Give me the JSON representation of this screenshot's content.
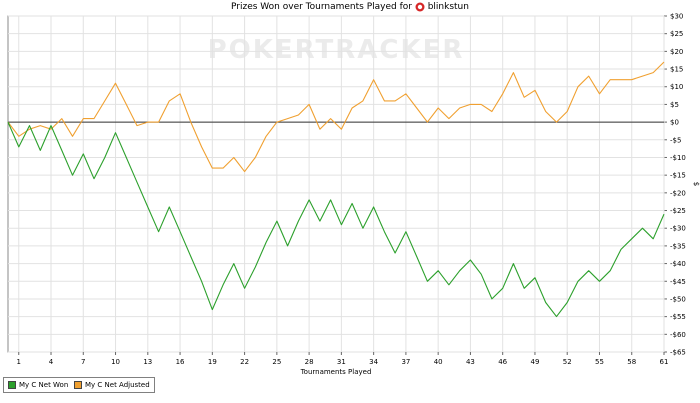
{
  "chart_data": {
    "type": "line",
    "title_prefix": "Prizes Won over Tournaments Played for",
    "player_name": "blinkstun",
    "watermark": "POKERTRACKER",
    "xlabel": "Tournaments Played",
    "ylabel": "$",
    "xlim": [
      0,
      61
    ],
    "ylim": [
      -65,
      30
    ],
    "x_ticks": [
      1,
      4,
      7,
      10,
      13,
      16,
      19,
      22,
      25,
      28,
      31,
      34,
      37,
      40,
      43,
      46,
      49,
      52,
      55,
      58,
      61
    ],
    "y_ticks": [
      30,
      25,
      20,
      15,
      10,
      5,
      0,
      -5,
      -10,
      -15,
      -20,
      -25,
      -30,
      -35,
      -40,
      -45,
      -50,
      -55,
      -60,
      -65
    ],
    "y_tick_labels": [
      "$30",
      "$25",
      "$20",
      "$15",
      "$10",
      "$5",
      "$0",
      "-$5",
      "-$10",
      "-$15",
      "-$20",
      "-$25",
      "-$30",
      "-$35",
      "-$40",
      "-$45",
      "-$50",
      "-$55",
      "-$60",
      "-$65"
    ],
    "grid": true,
    "zero_line": true,
    "legend_position": "bottom-left",
    "series": [
      {
        "name": "My C Net Won",
        "color": "#2ca02c",
        "x": [
          0,
          1,
          2,
          3,
          4,
          5,
          6,
          7,
          8,
          9,
          10,
          11,
          12,
          13,
          14,
          15,
          16,
          17,
          18,
          19,
          20,
          21,
          22,
          23,
          24,
          25,
          26,
          27,
          28,
          29,
          30,
          31,
          32,
          33,
          34,
          35,
          36,
          37,
          38,
          39,
          40,
          41,
          42,
          43,
          44,
          45,
          46,
          47,
          48,
          49,
          50,
          51,
          52,
          53,
          54,
          55,
          56,
          57,
          58,
          59,
          60,
          61
        ],
        "values": [
          0,
          -7,
          -1,
          -8,
          -1,
          -8,
          -15,
          -9,
          -16,
          -10,
          -3,
          -10,
          -17,
          -24,
          -31,
          -24,
          -31,
          -38,
          -45,
          -53,
          -46,
          -40,
          -47,
          -41,
          -34,
          -28,
          -35,
          -28,
          -22,
          -28,
          -22,
          -29,
          -23,
          -30,
          -24,
          -31,
          -37,
          -31,
          -38,
          -45,
          -42,
          -46,
          -42,
          -39,
          -43,
          -50,
          -47,
          -40,
          -47,
          -44,
          -51,
          -55,
          -51,
          -45,
          -42,
          -45,
          -42,
          -36,
          -33,
          -30,
          -33,
          -26
        ]
      },
      {
        "name": "My C Net Adjusted",
        "color": "#f0a030",
        "x": [
          0,
          1,
          2,
          3,
          4,
          5,
          6,
          7,
          8,
          9,
          10,
          11,
          12,
          13,
          14,
          15,
          16,
          17,
          18,
          19,
          20,
          21,
          22,
          23,
          24,
          25,
          26,
          27,
          28,
          29,
          30,
          31,
          32,
          33,
          34,
          35,
          36,
          37,
          38,
          39,
          40,
          41,
          42,
          43,
          44,
          45,
          46,
          47,
          48,
          49,
          50,
          51,
          52,
          53,
          54,
          55,
          56,
          57,
          58,
          59,
          60,
          61
        ],
        "values": [
          0,
          -4,
          -2,
          -1,
          -2,
          1,
          -4,
          1,
          1,
          6,
          11,
          5,
          -1,
          0,
          0,
          6,
          8,
          0,
          -7,
          -13,
          -13,
          -10,
          -14,
          -10,
          -4,
          0,
          1,
          2,
          5,
          -2,
          1,
          -2,
          4,
          6,
          12,
          6,
          6,
          8,
          4,
          0,
          4,
          1,
          4,
          5,
          5,
          3,
          8,
          14,
          7,
          9,
          3,
          0,
          3,
          10,
          13,
          8,
          12,
          12,
          12,
          13,
          14,
          17
        ]
      }
    ]
  }
}
